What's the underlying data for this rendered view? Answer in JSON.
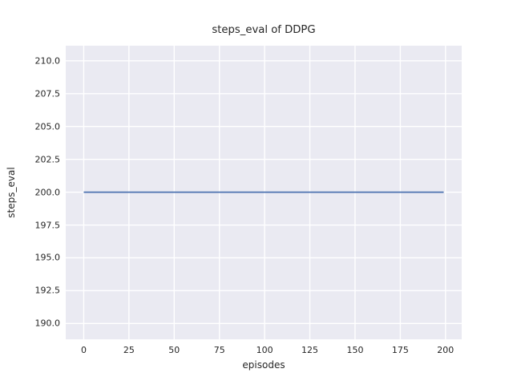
{
  "chart_data": {
    "type": "line",
    "title": "steps_eval of DDPG",
    "xlabel": "episodes",
    "ylabel": "steps_eval",
    "xlim": [
      -9.95,
      208.95
    ],
    "ylim": [
      188.8,
      211.15
    ],
    "xticks": [
      0,
      25,
      50,
      75,
      100,
      125,
      150,
      175,
      200
    ],
    "xtick_labels": [
      "0",
      "25",
      "50",
      "75",
      "100",
      "125",
      "150",
      "175",
      "200"
    ],
    "yticks": [
      190.0,
      192.5,
      195.0,
      197.5,
      200.0,
      202.5,
      205.0,
      207.5,
      210.0
    ],
    "ytick_labels": [
      "190.0",
      "192.5",
      "195.0",
      "197.5",
      "200.0",
      "202.5",
      "205.0",
      "207.5",
      "210.0"
    ],
    "grid": true,
    "legend": "none",
    "style": {
      "plot_background": "#eaeaf2",
      "grid_color": "#ffffff",
      "text_color": "#262626",
      "line_color": "#4c72b0",
      "line_width": 1.8
    },
    "series": [
      {
        "name": "DDPG steps_eval",
        "x": [
          0,
          199
        ],
        "y": [
          200.0,
          200.0
        ]
      }
    ]
  }
}
